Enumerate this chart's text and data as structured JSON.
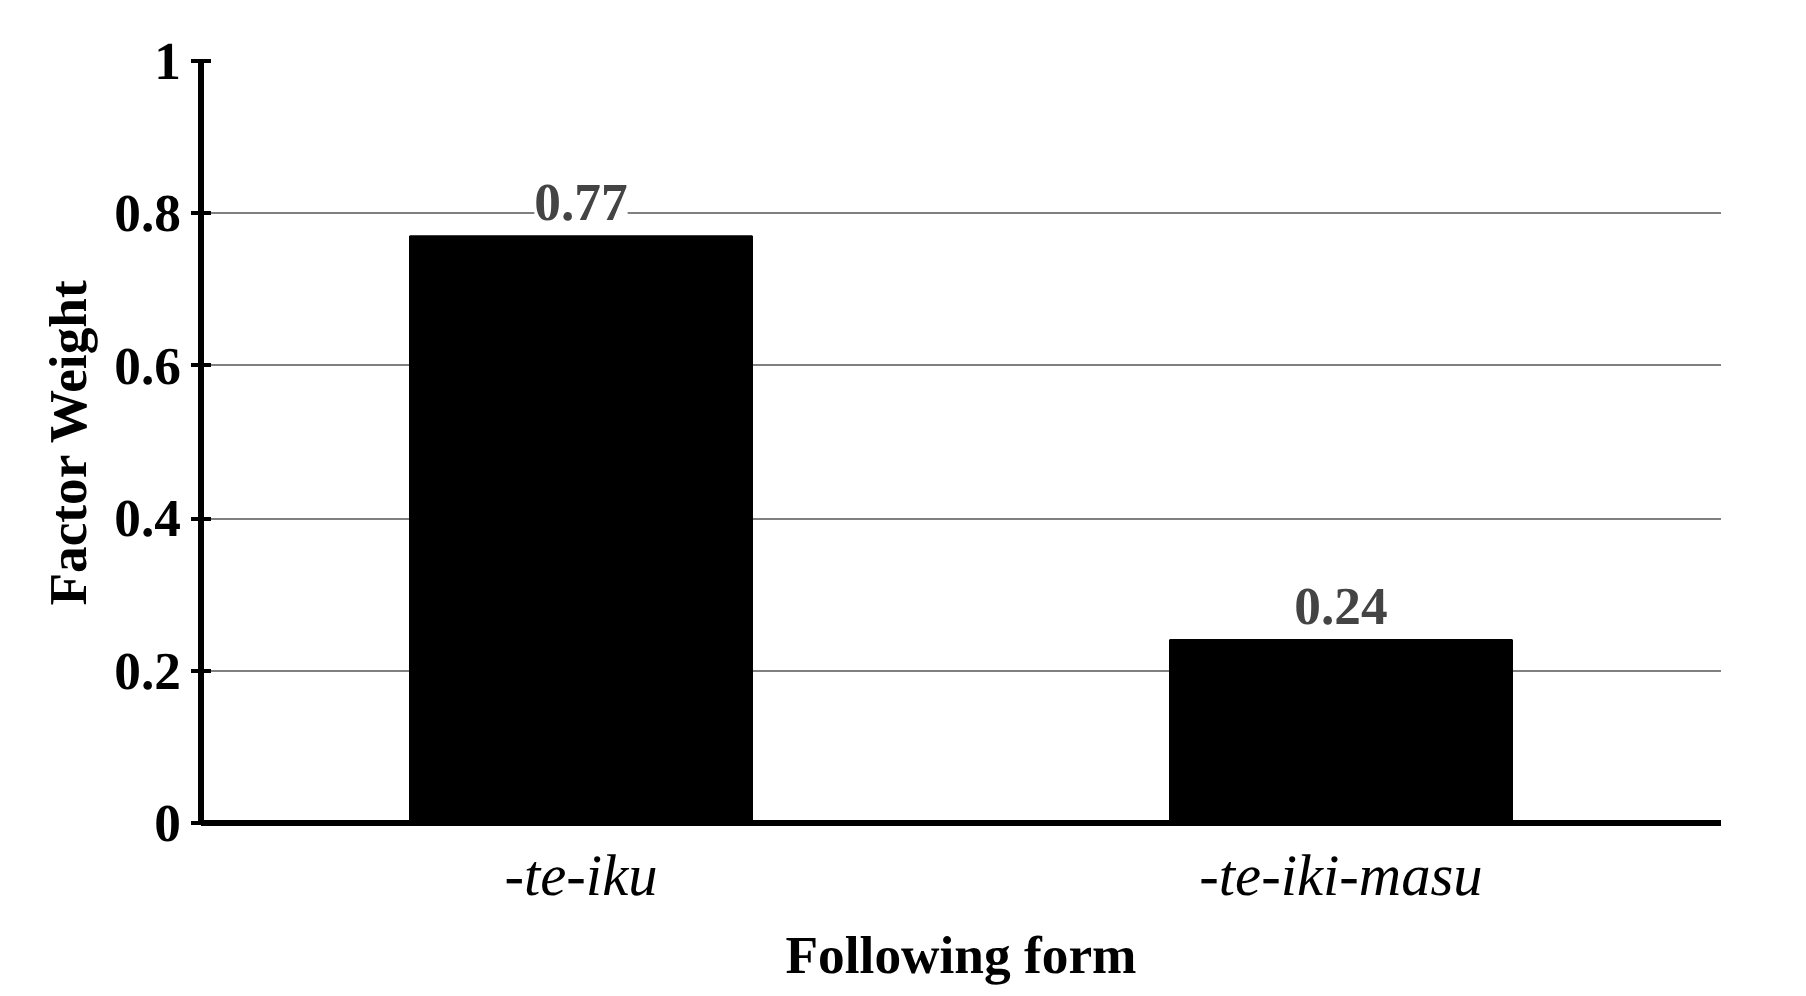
{
  "chart_data": {
    "type": "bar",
    "xlabel": "Following form",
    "ylabel": "Factor Weight",
    "categories": [
      "-te-iku",
      "-te-iki-masu"
    ],
    "values": [
      0.77,
      0.24
    ],
    "color": "#000000",
    "ylim": [
      0,
      1
    ],
    "yticks": [
      0,
      0.2,
      0.4,
      0.6,
      0.8,
      1
    ],
    "grid": "y",
    "data_labels": true
  }
}
